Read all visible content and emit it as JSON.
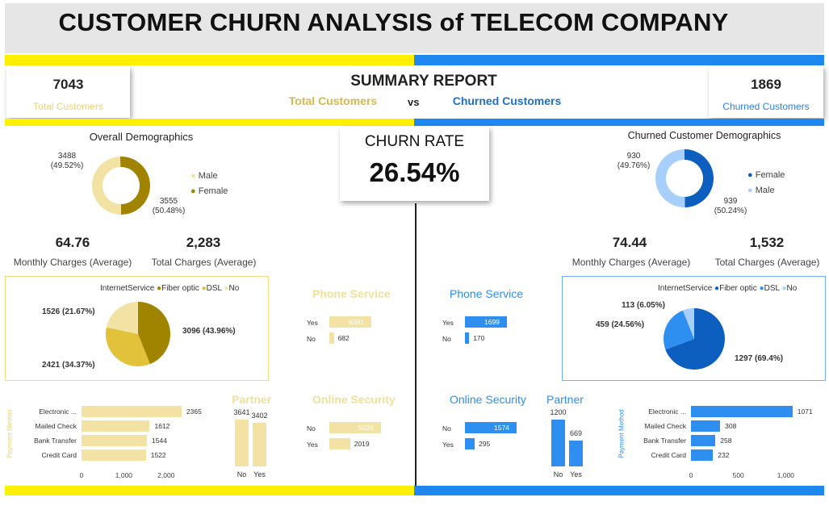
{
  "title": "CUSTOMER CHURN ANALYSIS of TELECOM COMPANY",
  "colors": {
    "gold": "#e8d27a",
    "gold_dark": "#a08400",
    "gold_mid": "#e2c23a",
    "gold_light": "#f2e2a4",
    "blue": "#2f8ff0",
    "blue_dark": "#0d5fbf",
    "blue_light": "#a6cffb",
    "yellow_band": "#ffef00",
    "blue_band": "#1e88f0"
  },
  "summary": {
    "title": "SUMMARY REPORT",
    "left_label": "Total Customers",
    "vs": "vs",
    "right_label": "Churned Customers"
  },
  "kpi_left": {
    "value": "7043",
    "label": "Total Customers"
  },
  "kpi_right": {
    "value": "1869",
    "label": "Churned Customers"
  },
  "churn": {
    "label": "CHURN RATE",
    "value": "26.54%"
  },
  "overall_demo": {
    "title": "Overall Demographics",
    "legend": [
      "Male",
      "Female"
    ],
    "label_top": "3488",
    "label_top_pct": "(49.52%)",
    "label_bottom": "3555",
    "label_bottom_pct": "(50.48%)"
  },
  "churn_demo": {
    "title": "Churned Customer Demographics",
    "legend": [
      "Female",
      "Male"
    ],
    "label_top": "930",
    "label_top_pct": "(49.76%)",
    "label_bottom": "939",
    "label_bottom_pct": "(50.24%)"
  },
  "left_charges": {
    "monthly": "64.76",
    "monthly_label": "Monthly Charges (Average)",
    "total": "2,283",
    "total_label": "Total Charges (Average)"
  },
  "right_charges": {
    "monthly": "74.44",
    "monthly_label": "Monthly Charges (Average)",
    "total": "1,532",
    "total_label": "Total Charges (Average)"
  },
  "left_internet": {
    "legend_title": "InternetService",
    "legend": [
      "Fiber optic",
      "DSL",
      "No"
    ],
    "labels": [
      "1526 (21.67%)",
      "3096 (43.96%)",
      "2421 (34.37%)"
    ]
  },
  "right_internet": {
    "legend_title": "InternetService",
    "legend": [
      "Fiber optic",
      "DSL",
      "No"
    ],
    "labels": [
      "113 (6.05%)",
      "459 (24.56%)",
      "1297 (69.4%)"
    ]
  },
  "left_phone": {
    "title": "Phone Service",
    "rows": [
      {
        "cat": "Yes",
        "val": "6361"
      },
      {
        "cat": "No",
        "val": "682"
      }
    ]
  },
  "right_phone": {
    "title": "Phone Service",
    "rows": [
      {
        "cat": "Yes",
        "val": "1699"
      },
      {
        "cat": "No",
        "val": "170"
      }
    ]
  },
  "left_security": {
    "title": "Online Security",
    "rows": [
      {
        "cat": "No",
        "val": "5024"
      },
      {
        "cat": "Yes",
        "val": "2019"
      }
    ]
  },
  "right_security": {
    "title": "Online Security",
    "rows": [
      {
        "cat": "No",
        "val": "1574"
      },
      {
        "cat": "Yes",
        "val": "295"
      }
    ]
  },
  "left_partner": {
    "title": "Partner",
    "cats": [
      "No",
      "Yes"
    ],
    "vals": [
      "3641",
      "3402"
    ]
  },
  "right_partner": {
    "title": "Partner",
    "cats": [
      "No",
      "Yes"
    ],
    "vals": [
      "1200",
      "669"
    ]
  },
  "left_payment": {
    "axis_title": "Payment Method",
    "cats": [
      "Electronic ...",
      "Mailed Check",
      "Bank Transfer",
      "Credit Card"
    ],
    "vals": [
      "2365",
      "1612",
      "1544",
      "1522"
    ],
    "ticks": [
      "0",
      "1,000",
      "2,000"
    ]
  },
  "right_payment": {
    "axis_title": "Payment Method",
    "cats": [
      "Electronic ...",
      "Mailed Check",
      "Bank Transfer",
      "Credit Card"
    ],
    "vals": [
      "1071",
      "308",
      "258",
      "232"
    ],
    "ticks": [
      "0",
      "500",
      "1,000"
    ]
  },
  "chart_data": [
    {
      "type": "pie",
      "title": "Overall Demographics",
      "categories": [
        "Male",
        "Female"
      ],
      "values": [
        3488,
        3555
      ]
    },
    {
      "type": "pie",
      "title": "Churned Customer Demographics",
      "categories": [
        "Female",
        "Male"
      ],
      "values": [
        930,
        939
      ]
    },
    {
      "type": "pie",
      "categories": [
        "Fiber optic",
        "DSL",
        "No"
      ],
      "values": [
        3096,
        2421,
        1526
      ]
    },
    {
      "type": "pie",
      "categories": [
        "Fiber optic",
        "DSL",
        "No"
      ],
      "values": [
        1297,
        459,
        113
      ]
    },
    {
      "type": "bar",
      "title": "Phone Service",
      "categories": [
        "Yes",
        "No"
      ],
      "values": [
        6361,
        682
      ]
    },
    {
      "type": "bar",
      "title": "Phone Service",
      "categories": [
        "Yes",
        "No"
      ],
      "values": [
        1699,
        170
      ]
    },
    {
      "type": "bar",
      "title": "Online Security",
      "categories": [
        "No",
        "Yes"
      ],
      "values": [
        5024,
        2019
      ]
    },
    {
      "type": "bar",
      "title": "Online Security",
      "categories": [
        "No",
        "Yes"
      ],
      "values": [
        1574,
        295
      ]
    },
    {
      "type": "bar",
      "title": "Partner",
      "categories": [
        "No",
        "Yes"
      ],
      "values": [
        3641,
        3402
      ]
    },
    {
      "type": "bar",
      "title": "Partner",
      "categories": [
        "No",
        "Yes"
      ],
      "values": [
        1200,
        669
      ]
    },
    {
      "type": "bar",
      "ylabel": "Payment Method",
      "categories": [
        "Electronic ...",
        "Mailed Check",
        "Bank Transfer",
        "Credit Card"
      ],
      "values": [
        2365,
        1612,
        1544,
        1522
      ],
      "xlim": [
        0,
        2500
      ]
    },
    {
      "type": "bar",
      "ylabel": "Payment Method",
      "categories": [
        "Electronic ...",
        "Mailed Check",
        "Bank Transfer",
        "Credit Card"
      ],
      "values": [
        1071,
        308,
        258,
        232
      ],
      "xlim": [
        0,
        1150
      ]
    }
  ]
}
